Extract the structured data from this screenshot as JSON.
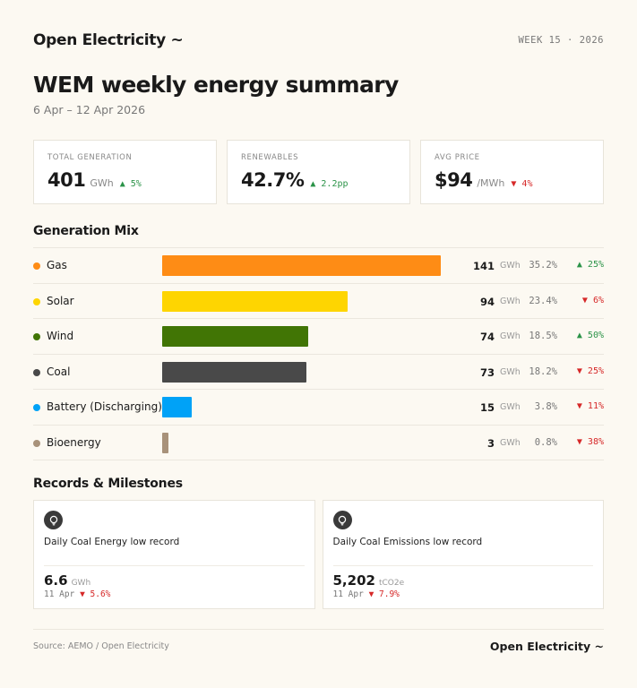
{
  "header": {
    "brand": "Open Electricity ~",
    "week": "WEEK 15 · 2026"
  },
  "title": "WEM weekly energy summary",
  "date_range": "6 Apr – 12 Apr 2026",
  "kpis": [
    {
      "label": "TOTAL GENERATION",
      "value": "401",
      "unit": "GWh",
      "delta": "▲ 5%",
      "direction": "up"
    },
    {
      "label": "RENEWABLES",
      "value": "42.7%",
      "unit": "",
      "delta": "▲ 2.2pp",
      "direction": "up"
    },
    {
      "label": "AVG PRICE",
      "value": "$94",
      "unit": "/MWh",
      "delta": "▼ 4%",
      "direction": "down"
    }
  ],
  "sections": {
    "mix": "Generation Mix",
    "records": "Records & Milestones"
  },
  "chart_data": {
    "type": "bar",
    "orientation": "horizontal",
    "categories": [
      "Gas",
      "Solar",
      "Wind",
      "Coal",
      "Battery (Discharging)",
      "Bioenergy"
    ],
    "values": [
      141,
      94,
      74,
      73,
      15,
      3
    ],
    "unit": "GWh",
    "shares": [
      "35.2%",
      "23.4%",
      "18.5%",
      "18.2%",
      "3.8%",
      "0.8%"
    ],
    "changes": [
      "▲ 25%",
      "▼ 6%",
      "▲ 50%",
      "▼ 25%",
      "▼ 11%",
      "▼ 38%"
    ],
    "change_direction": [
      "up",
      "down",
      "up",
      "down",
      "down",
      "down"
    ],
    "colors": [
      "#fe8c15",
      "#fed501",
      "#417505",
      "#494949",
      "#00a2f7",
      "#a8927a"
    ],
    "xlim": [
      0,
      141
    ]
  },
  "records": [
    {
      "title": "Daily Coal Energy low record",
      "value": "6.6",
      "unit": "GWh",
      "date": "11 Apr",
      "delta": "▼ 5.6%",
      "icon": "lightbulb-icon"
    },
    {
      "title": "Daily Coal Emissions low record",
      "value": "5,202",
      "unit": "tCO2e",
      "date": "11 Apr",
      "delta": "▼ 7.9%",
      "icon": "lightbulb-icon"
    }
  ],
  "footer": {
    "source": "Source: AEMO / Open Electricity",
    "brand": "Open Electricity ~"
  }
}
